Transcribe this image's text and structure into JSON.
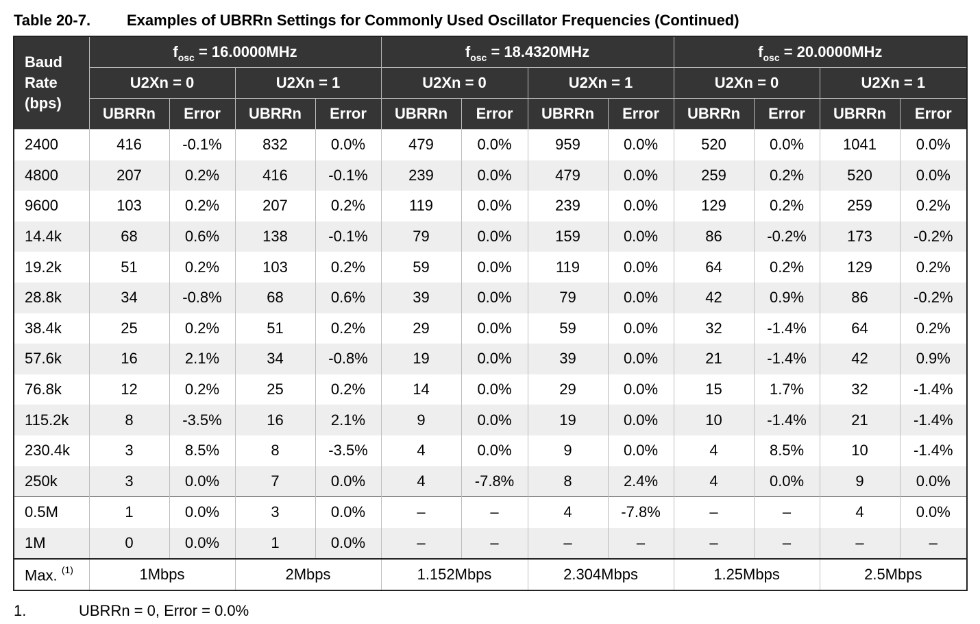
{
  "caption": {
    "number": "Table 20-7.",
    "title": "Examples of UBRRn Settings for Commonly Used Oscillator Frequencies (Continued)"
  },
  "header": {
    "baud_label": "Baud Rate (bps)",
    "f_prefix": "f",
    "f_sub": "osc",
    "groups": [
      {
        "freq": " = 16.0000MHz"
      },
      {
        "freq": " = 18.4320MHz"
      },
      {
        "freq": " = 20.0000MHz"
      }
    ],
    "u2x0": "U2Xn = 0",
    "u2x1": "U2Xn = 1",
    "ubrr": "UBRRn",
    "error": "Error"
  },
  "rows": [
    [
      "2400",
      "416",
      "-0.1%",
      "832",
      "0.0%",
      "479",
      "0.0%",
      "959",
      "0.0%",
      "520",
      "0.0%",
      "1041",
      "0.0%"
    ],
    [
      "4800",
      "207",
      "0.2%",
      "416",
      "-0.1%",
      "239",
      "0.0%",
      "479",
      "0.0%",
      "259",
      "0.2%",
      "520",
      "0.0%"
    ],
    [
      "9600",
      "103",
      "0.2%",
      "207",
      "0.2%",
      "119",
      "0.0%",
      "239",
      "0.0%",
      "129",
      "0.2%",
      "259",
      "0.2%"
    ],
    [
      "14.4k",
      "68",
      "0.6%",
      "138",
      "-0.1%",
      "79",
      "0.0%",
      "159",
      "0.0%",
      "86",
      "-0.2%",
      "173",
      "-0.2%"
    ],
    [
      "19.2k",
      "51",
      "0.2%",
      "103",
      "0.2%",
      "59",
      "0.0%",
      "119",
      "0.0%",
      "64",
      "0.2%",
      "129",
      "0.2%"
    ],
    [
      "28.8k",
      "34",
      "-0.8%",
      "68",
      "0.6%",
      "39",
      "0.0%",
      "79",
      "0.0%",
      "42",
      "0.9%",
      "86",
      "-0.2%"
    ],
    [
      "38.4k",
      "25",
      "0.2%",
      "51",
      "0.2%",
      "29",
      "0.0%",
      "59",
      "0.0%",
      "32",
      "-1.4%",
      "64",
      "0.2%"
    ],
    [
      "57.6k",
      "16",
      "2.1%",
      "34",
      "-0.8%",
      "19",
      "0.0%",
      "39",
      "0.0%",
      "21",
      "-1.4%",
      "42",
      "0.9%"
    ],
    [
      "76.8k",
      "12",
      "0.2%",
      "25",
      "0.2%",
      "14",
      "0.0%",
      "29",
      "0.0%",
      "15",
      "1.7%",
      "32",
      "-1.4%"
    ],
    [
      "115.2k",
      "8",
      "-3.5%",
      "16",
      "2.1%",
      "9",
      "0.0%",
      "19",
      "0.0%",
      "10",
      "-1.4%",
      "21",
      "-1.4%"
    ],
    [
      "230.4k",
      "3",
      "8.5%",
      "8",
      "-3.5%",
      "4",
      "0.0%",
      "9",
      "0.0%",
      "4",
      "8.5%",
      "10",
      "-1.4%"
    ],
    [
      "250k",
      "3",
      "0.0%",
      "7",
      "0.0%",
      "4",
      "-7.8%",
      "8",
      "2.4%",
      "4",
      "0.0%",
      "9",
      "0.0%"
    ],
    [
      "0.5M",
      "1",
      "0.0%",
      "3",
      "0.0%",
      "–",
      "–",
      "4",
      "-7.8%",
      "–",
      "–",
      "4",
      "0.0%"
    ],
    [
      "1M",
      "0",
      "0.0%",
      "1",
      "0.0%",
      "–",
      "–",
      "–",
      "–",
      "–",
      "–",
      "–",
      "–"
    ]
  ],
  "max_row": {
    "label": "Max.",
    "note_ref": "(1)",
    "values": [
      "1Mbps",
      "2Mbps",
      "1.152Mbps",
      "2.304Mbps",
      "1.25Mbps",
      "2.5Mbps"
    ]
  },
  "footnote": {
    "number": "1.",
    "text": "UBRRn = 0, Error = 0.0%"
  }
}
